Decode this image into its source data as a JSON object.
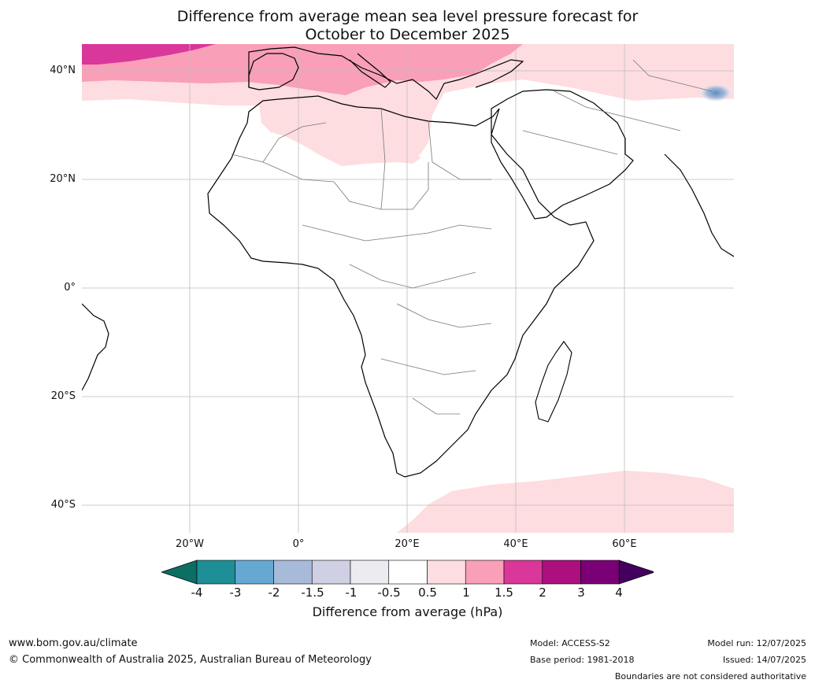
{
  "title": {
    "line1": "Difference from average mean sea level pressure forecast for",
    "line2": "October to December 2025"
  },
  "axes": {
    "lat_labels": [
      "40°N",
      "20°N",
      "0°",
      "20°S",
      "40°S"
    ],
    "lon_labels": [
      "20°W",
      "0°",
      "20°E",
      "40°E",
      "60°E"
    ]
  },
  "colorbar": {
    "label": "Difference from average (hPa)",
    "ticks": [
      "-4",
      "-3",
      "-2",
      "-1.5",
      "-1",
      "-0.5",
      "0.5",
      "1",
      "1.5",
      "2",
      "3",
      "4"
    ],
    "colors": [
      "#0d6e64",
      "#1e8f96",
      "#65a9d3",
      "#a7bad9",
      "#cfd0e4",
      "#ececf0",
      "#ffffff",
      "#fddde0",
      "#f99fb8",
      "#d9379a",
      "#ae0f7f",
      "#7a0076",
      "#44005e"
    ]
  },
  "map": {
    "lat_range": [
      -45,
      45
    ],
    "lon_range": [
      -40,
      80
    ],
    "regions": {
      "north_band": "1.5 to 2 hPa (pink)",
      "northwest_corner": "2 to 3 hPa (magenta)",
      "north_africa_middle_east": "0.5 to 1.5 hPa",
      "southern_ocean": "0.5 to 1 hPa",
      "himalaya_spot": "below -0.5 hPa"
    }
  },
  "footer": {
    "website": "www.bom.gov.au/climate",
    "copyright": "© Commonwealth of Australia 2025, Australian Bureau of Meteorology",
    "model": "Model: ACCESS-S2",
    "base_period": "Base period: 1981-2018",
    "model_run": "Model run: 12/07/2025",
    "issued": "Issued: 14/07/2025",
    "disclaimer": "Boundaries are not considered authoritative"
  }
}
